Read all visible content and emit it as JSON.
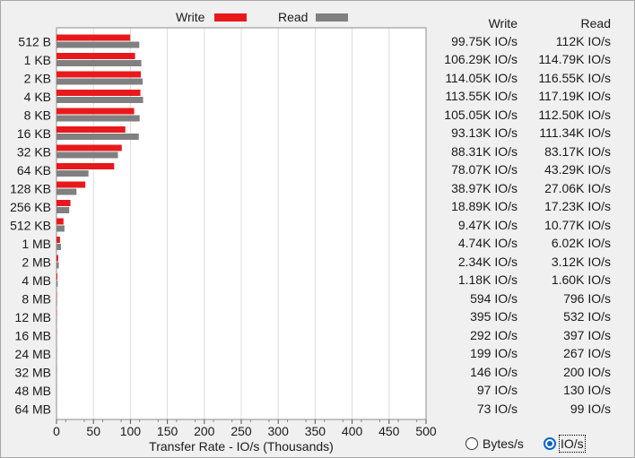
{
  "legend": {
    "write_label": "Write",
    "read_label": "Read"
  },
  "colors": {
    "write": "#e8191c",
    "read": "#808080",
    "grid": "#dcdcdc",
    "accent": "#0a64c8"
  },
  "table": {
    "header_write": "Write",
    "header_read": "Read"
  },
  "chart_data": {
    "type": "bar",
    "orientation": "horizontal",
    "categories": [
      "512 B",
      "1 KB",
      "2 KB",
      "4 KB",
      "8 KB",
      "16 KB",
      "32 KB",
      "64 KB",
      "128 KB",
      "256 KB",
      "512 KB",
      "1 MB",
      "2 MB",
      "4 MB",
      "8 MB",
      "12 MB",
      "16 MB",
      "24 MB",
      "32 MB",
      "48 MB",
      "64 MB"
    ],
    "series": [
      {
        "name": "Write",
        "values": [
          99.75,
          106.29,
          114.05,
          113.55,
          105.05,
          93.13,
          88.31,
          78.07,
          38.97,
          18.89,
          9.47,
          4.74,
          2.34,
          1.18,
          0.594,
          0.395,
          0.292,
          0.199,
          0.146,
          0.097,
          0.073
        ]
      },
      {
        "name": "Read",
        "values": [
          112,
          114.79,
          116.55,
          117.19,
          112.5,
          111.34,
          83.17,
          43.29,
          27.06,
          17.23,
          10.77,
          6.02,
          3.12,
          1.6,
          0.796,
          0.532,
          0.397,
          0.267,
          0.2,
          0.13,
          0.099
        ]
      }
    ],
    "value_labels": {
      "write": [
        "99.75K IO/s",
        "106.29K IO/s",
        "114.05K IO/s",
        "113.55K IO/s",
        "105.05K IO/s",
        "93.13K IO/s",
        "88.31K IO/s",
        "78.07K IO/s",
        "38.97K IO/s",
        "18.89K IO/s",
        "9.47K IO/s",
        "4.74K IO/s",
        "2.34K IO/s",
        "1.18K IO/s",
        "594 IO/s",
        "395 IO/s",
        "292 IO/s",
        "199 IO/s",
        "146 IO/s",
        "97 IO/s",
        "73 IO/s"
      ],
      "read": [
        "112K IO/s",
        "114.79K IO/s",
        "116.55K IO/s",
        "117.19K IO/s",
        "112.50K IO/s",
        "111.34K IO/s",
        "83.17K IO/s",
        "43.29K IO/s",
        "27.06K IO/s",
        "17.23K IO/s",
        "10.77K IO/s",
        "6.02K IO/s",
        "3.12K IO/s",
        "1.60K IO/s",
        "796 IO/s",
        "532 IO/s",
        "397 IO/s",
        "267 IO/s",
        "200 IO/s",
        "130 IO/s",
        "99 IO/s"
      ]
    },
    "xticks": [
      0,
      50,
      100,
      150,
      200,
      250,
      300,
      350,
      400,
      450,
      500
    ],
    "xlim": [
      0,
      500
    ],
    "xlabel": "Transfer Rate - IO/s (Thousands)",
    "ylabel": "",
    "title": "",
    "grid": true,
    "legend_position": "top"
  },
  "units": {
    "bytes_label": "Bytes/s",
    "ios_label": "IO/s",
    "selected": "ios"
  }
}
